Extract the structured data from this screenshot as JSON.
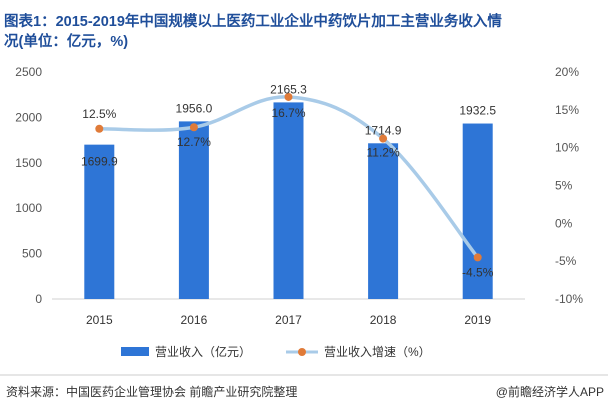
{
  "chart_data": {
    "type": "bar+line",
    "title_line1": "图表1：2015-2019年中国规模以上医药工业企业中药饮片加工主营业务收入情",
    "title_line2": "况(单位：亿元，%)",
    "categories": [
      "2015",
      "2016",
      "2017",
      "2018",
      "2019"
    ],
    "series": [
      {
        "name": "营业收入（亿元）",
        "type": "bar",
        "axis": "left",
        "values": [
          1699.9,
          1956.0,
          2165.3,
          1714.9,
          1932.5
        ],
        "labels": [
          "1699.9",
          "1956.0",
          "2165.3",
          "1714.9",
          "1932.5"
        ]
      },
      {
        "name": "营业收入增速（%）",
        "type": "line",
        "axis": "right",
        "values": [
          12.5,
          12.7,
          16.7,
          11.2,
          -4.5
        ],
        "labels": [
          "12.5%",
          "12.7%",
          "16.7%",
          "11.2%",
          "-4.5%"
        ]
      }
    ],
    "left_axis": {
      "min": 0,
      "max": 2500,
      "ticks": [
        "0",
        "500",
        "1000",
        "1500",
        "2000",
        "2500"
      ]
    },
    "right_axis": {
      "min": -10,
      "max": 20,
      "ticks": [
        "-10%",
        "-5%",
        "0%",
        "5%",
        "10%",
        "15%",
        "20%"
      ]
    },
    "legend": [
      "营业收入（亿元）",
      "营业收入增速（%）"
    ],
    "source": "资料来源：中国医药企业管理协会 前瞻产业研究院整理",
    "credit": "@前瞻经济学人APP",
    "colors": {
      "bar": "#2e75d6",
      "line": "#a9cbe8",
      "marker": "#e07b39",
      "title": "#1f4e9a",
      "axis_text": "#555555"
    }
  }
}
